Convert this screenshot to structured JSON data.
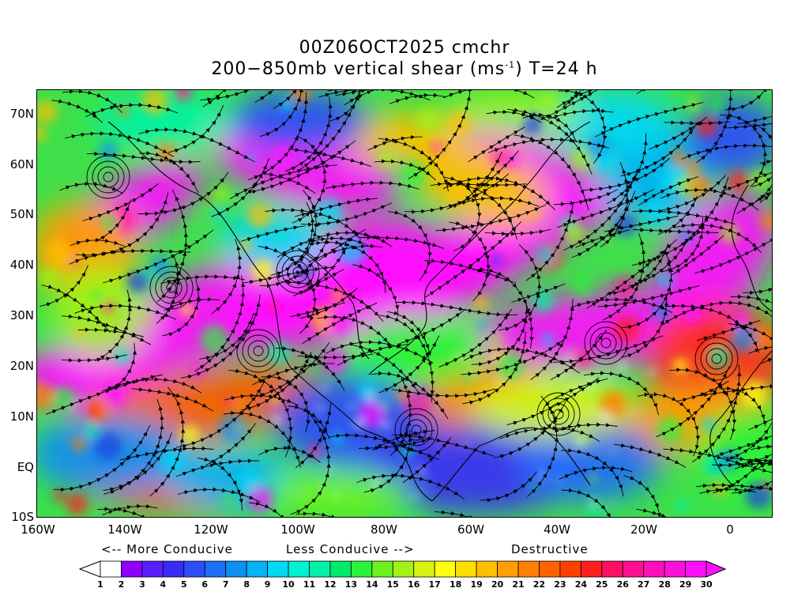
{
  "title": {
    "line1": "00Z06OCT2025 cmchr",
    "line2_pre": "200−850mb vertical shear (ms",
    "line2_sup": "-1",
    "line2_post": ") T=24 h"
  },
  "lat_labels": [
    "70N",
    "60N",
    "50N",
    "40N",
    "30N",
    "20N",
    "10N",
    "EQ",
    "10S"
  ],
  "lon_labels": [
    "160W",
    "140W",
    "120W",
    "100W",
    "80W",
    "60W",
    "40W",
    "20W",
    "0"
  ],
  "legend_text": {
    "more": "<-- More Conducive",
    "less": "Less Conducive -->",
    "destructive": "Destructive"
  },
  "colorbar": {
    "labels": [
      "1",
      "2",
      "3",
      "4",
      "5",
      "6",
      "7",
      "8",
      "9",
      "10",
      "11",
      "12",
      "13",
      "14",
      "15",
      "16",
      "17",
      "18",
      "19",
      "20",
      "21",
      "22",
      "23",
      "24",
      "25",
      "26",
      "27",
      "28",
      "29",
      "30"
    ],
    "colors": [
      "#ffffff",
      "#9000ff",
      "#5a1efd",
      "#3b2bf6",
      "#2c4dfa",
      "#1f6ef8",
      "#0d8ff4",
      "#03b3f6",
      "#00d8f6",
      "#00f2d5",
      "#00f2a8",
      "#00e86a",
      "#2bf23b",
      "#6bf21f",
      "#a3f217",
      "#d8f213",
      "#ffff12",
      "#ffdf00",
      "#ffbf00",
      "#ff9f00",
      "#ff7f00",
      "#ff6200",
      "#ff4000",
      "#ff1f1f",
      "#ff1060",
      "#ff1090",
      "#ff10b8",
      "#ff10d8",
      "#ff10ff"
    ],
    "under_color": "#ffffff",
    "over_color": "#ff10ff"
  },
  "map": {
    "field": "200-850mb vertical shear",
    "lon_range": [
      "160W",
      "10E"
    ],
    "lat_range": [
      "10S",
      "75N"
    ]
  }
}
